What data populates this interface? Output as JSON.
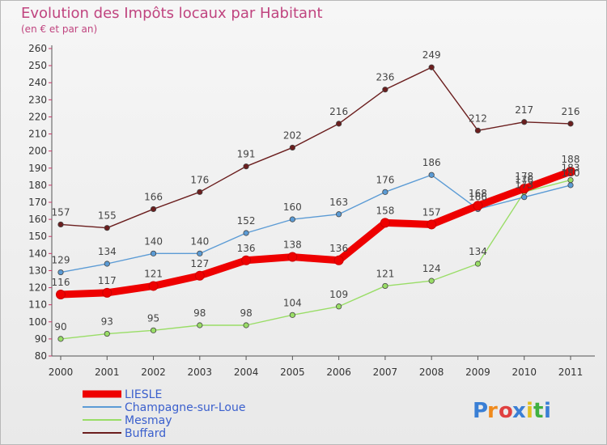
{
  "chart_data": {
    "type": "line",
    "title": "Evolution des Impôts locaux par Habitant",
    "subtitle": "(en € et par an)",
    "xlabel": "",
    "ylabel": "",
    "ylim": [
      80,
      260
    ],
    "ytick_step": 10,
    "grid": false,
    "legend_position": "bottom-left",
    "categories": [
      "2000",
      "2001",
      "2002",
      "2003",
      "2004",
      "2005",
      "2006",
      "2007",
      "2008",
      "2009",
      "2010",
      "2011"
    ],
    "series": [
      {
        "name": "LIESLE",
        "color": "#ee0000",
        "emphasis": "thick",
        "values": [
          116,
          117,
          121,
          127,
          136,
          138,
          136,
          158,
          157,
          168,
          178,
          188
        ],
        "labels": [
          "116",
          "117",
          "121",
          "127",
          "136",
          "138",
          "136",
          "158",
          "157",
          "168",
          "178",
          "188"
        ]
      },
      {
        "name": "Champagne-sur-Loue",
        "color": "#5b9bd5",
        "emphasis": "thin",
        "values": [
          129,
          134,
          140,
          140,
          152,
          160,
          163,
          176,
          186,
          166,
          173,
          180
        ],
        "labels": [
          "129",
          "134",
          "140",
          "140",
          "152",
          "160",
          "163",
          "176",
          "186",
          "166",
          "173",
          "180"
        ]
      },
      {
        "name": "Mesmay",
        "color": "#99dd66",
        "emphasis": "thin",
        "values": [
          90,
          93,
          95,
          98,
          98,
          104,
          109,
          121,
          124,
          134,
          176,
          183
        ],
        "labels": [
          "90",
          "93",
          "95",
          "98",
          "98",
          "104",
          "109",
          "121",
          "124",
          "134",
          "176",
          "183"
        ]
      },
      {
        "name": "Buffard",
        "color": "#6b1e1e",
        "emphasis": "thin",
        "values": [
          157,
          155,
          166,
          176,
          191,
          202,
          216,
          236,
          249,
          212,
          217,
          216
        ],
        "labels": [
          "157",
          "155",
          "166",
          "176",
          "191",
          "202",
          "216",
          "236",
          "249",
          "212",
          "217",
          "216"
        ]
      }
    ]
  },
  "logo": {
    "text": "Proxiti",
    "colors": [
      "#3a7fd5",
      "#f08a1c",
      "#e04040",
      "#3a7fd5",
      "#e0c020",
      "#40b040",
      "#3a7fd5"
    ]
  }
}
